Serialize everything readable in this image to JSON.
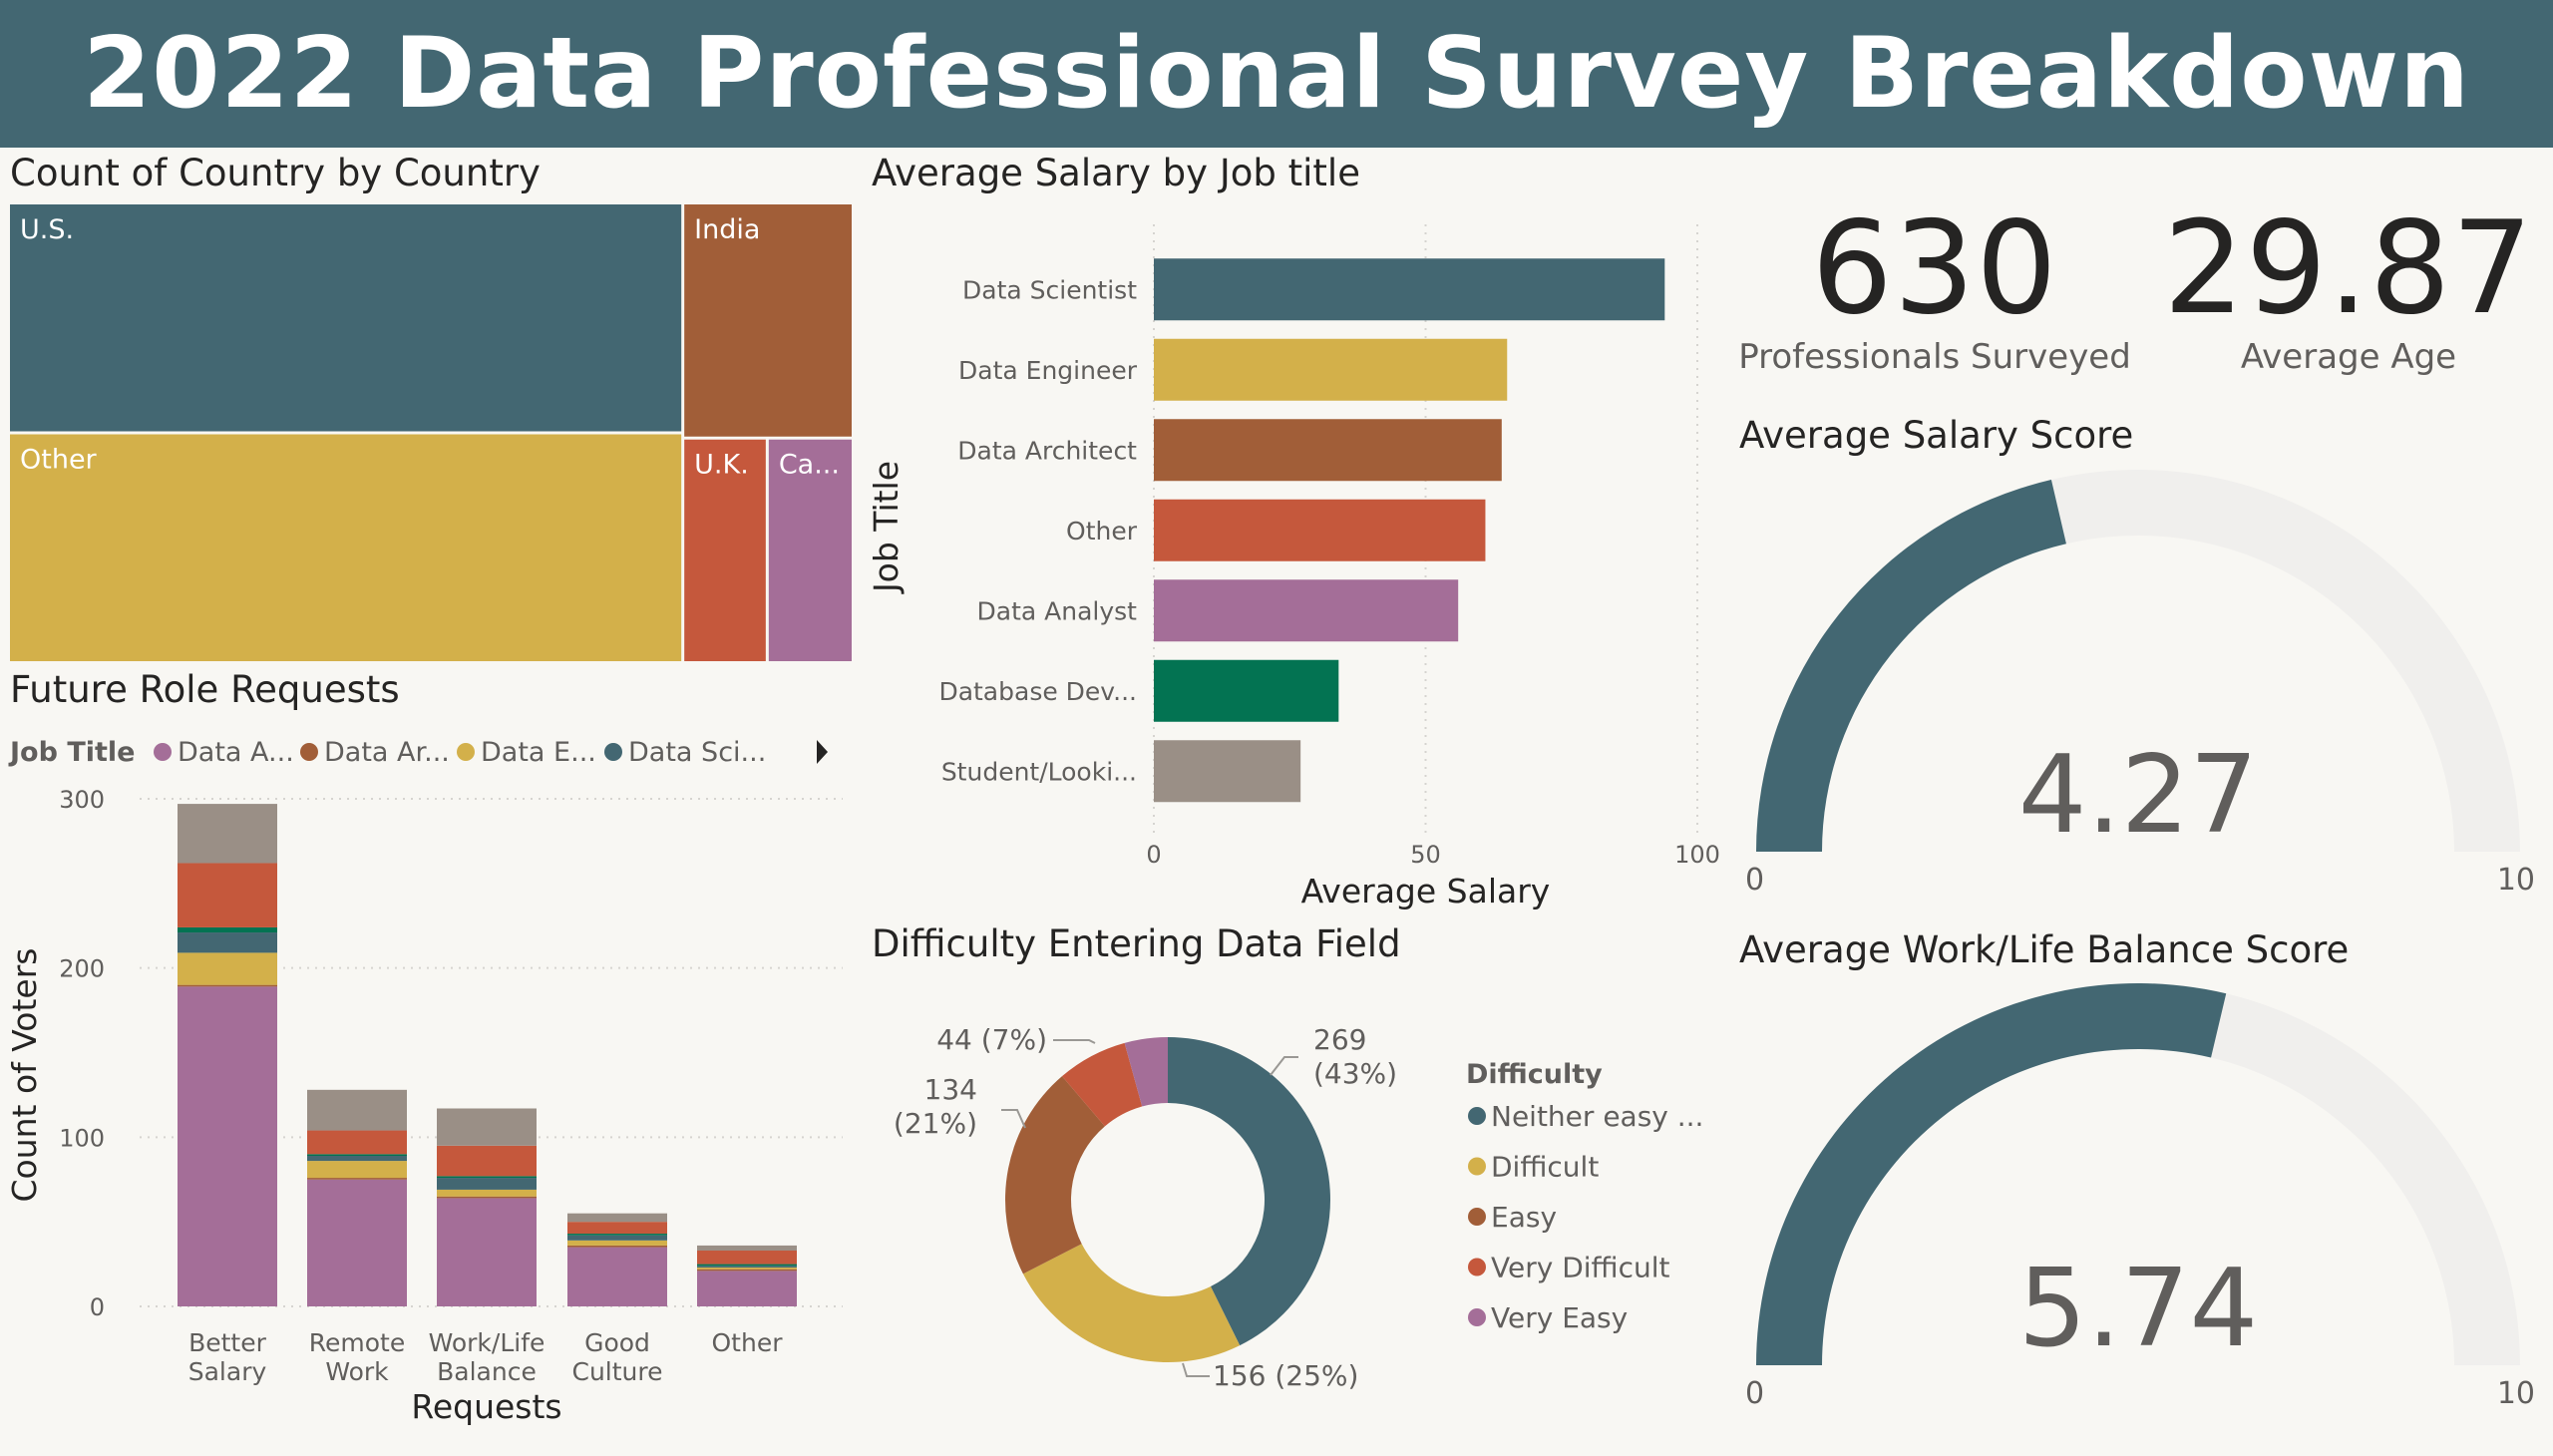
{
  "header": {
    "title": "2022 Data Professional Survey Breakdown"
  },
  "colors": {
    "header_bg": "#436772",
    "background": "#f8f7f3",
    "series": [
      "#436772",
      "#d3b04a",
      "#a15e38",
      "#c5583c",
      "#a46e98",
      "#037352",
      "#9a8f86"
    ]
  },
  "kpis": {
    "professionals": {
      "value": "630",
      "label": "Professionals Surveyed"
    },
    "age": {
      "value": "29.87",
      "label": "Average Age"
    }
  },
  "chart_data": [
    {
      "id": "country_treemap",
      "type": "treemap",
      "title": "Count of Country by Country",
      "categories": [
        "U.S.",
        "Other",
        "India",
        "U.K.",
        "Ca..."
      ],
      "values": [
        261,
        261,
        67,
        32,
        32
      ],
      "colors": [
        "#436772",
        "#d3b04a",
        "#a15e38",
        "#c5583c",
        "#a46e98"
      ]
    },
    {
      "id": "salary_by_job",
      "type": "bar",
      "orientation": "horizontal",
      "title": "Average Salary by Job title",
      "categories": [
        "Data Scientist",
        "Data Engineer",
        "Data Architect",
        "Other",
        "Data Analyst",
        "Database Dev...",
        "Student/Looki..."
      ],
      "values": [
        94,
        65,
        64,
        61,
        56,
        34,
        27
      ],
      "colors": [
        "#436772",
        "#d3b04a",
        "#a15e38",
        "#c5583c",
        "#a46e98",
        "#037352",
        "#9a8f86"
      ],
      "xlabel": "Average Salary",
      "ylabel": "Job Title",
      "xlim": [
        0,
        100
      ],
      "xticks": [
        "0",
        "50",
        "100"
      ],
      "grid": true
    },
    {
      "id": "future_role_requests",
      "type": "bar",
      "stacked": true,
      "title": "Future Role Requests",
      "categories": [
        "Better\nSalary",
        "Remote\nWork",
        "Work/Life\nBalance",
        "Good\nCulture",
        "Other"
      ],
      "legend_title": "Job Title",
      "legend": [
        "Data A...",
        "Data Ar...",
        "Data E...",
        "Data Sci..."
      ],
      "series": [
        {
          "name": "Data Analyst",
          "color": "#a46e98",
          "values": [
            189,
            75,
            64,
            35,
            21
          ]
        },
        {
          "name": "Data Architect",
          "color": "#a15e38",
          "values": [
            1,
            1,
            1,
            1,
            1
          ]
        },
        {
          "name": "Data Engineer",
          "color": "#d3b04a",
          "values": [
            19,
            10,
            4,
            3,
            1
          ]
        },
        {
          "name": "Data Scientist",
          "color": "#436772",
          "values": [
            12,
            3,
            7,
            3,
            1
          ]
        },
        {
          "name": "Database Developer",
          "color": "#037352",
          "values": [
            3,
            1,
            1,
            1,
            1
          ]
        },
        {
          "name": "Other",
          "color": "#c5583c",
          "values": [
            38,
            14,
            18,
            7,
            8
          ]
        },
        {
          "name": "Student/Looking",
          "color": "#9a8f86",
          "values": [
            35,
            24,
            22,
            5,
            3
          ]
        }
      ],
      "xlabel": "Requests",
      "ylabel": "Count of Voters",
      "ylim": [
        0,
        300
      ],
      "yticks": [
        "0",
        "100",
        "200",
        "300"
      ],
      "grid": true
    },
    {
      "id": "difficulty_donut",
      "type": "pie",
      "donut": true,
      "title": "Difficulty Entering Data Field",
      "legend_title": "Difficulty",
      "legend": [
        "Neither easy ...",
        "Difficult",
        "Easy",
        "Very Difficult",
        "Very Easy"
      ],
      "values": [
        269,
        156,
        134,
        44,
        27
      ],
      "colors": [
        "#436772",
        "#d3b04a",
        "#a15e38",
        "#c5583c",
        "#a46e98"
      ],
      "data_labels": [
        {
          "line1": "269",
          "line2": "(43%)"
        },
        {
          "line1": "156 (25%)",
          "line2": ""
        },
        {
          "line1": "134",
          "line2": "(21%)"
        },
        {
          "line1": "44 (7%)",
          "line2": ""
        }
      ]
    },
    {
      "id": "gauge_salary",
      "type": "gauge",
      "title": "Average Salary Score",
      "value": 4.27,
      "value_label": "4.27",
      "min": 0,
      "max": 10,
      "min_label": "0",
      "max_label": "10"
    },
    {
      "id": "gauge_worklife",
      "type": "gauge",
      "title": "Average Work/Life Balance Score",
      "value": 5.74,
      "value_label": "5.74",
      "min": 0,
      "max": 10,
      "min_label": "0",
      "max_label": "10"
    }
  ]
}
